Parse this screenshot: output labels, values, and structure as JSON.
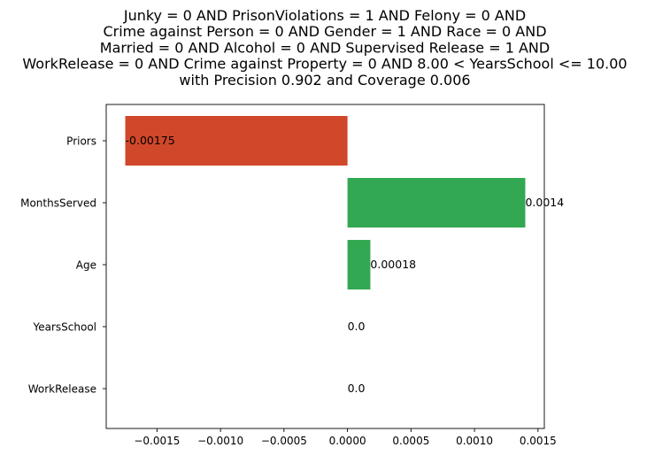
{
  "chart_data": {
    "type": "bar",
    "orientation": "horizontal",
    "title_lines": [
      "Junky = 0 AND PrisonViolations = 1 AND Felony = 0 AND",
      "Crime against Person = 0 AND Gender = 1 AND Race = 0 AND",
      "Married = 0 AND Alcohol = 0 AND Supervised Release = 1 AND",
      "WorkRelease = 0 AND Crime against Property = 0 AND 8.00 < YearsSchool <= 10.00",
      "with Precision 0.902 and Coverage 0.006"
    ],
    "categories": [
      "Priors",
      "MonthsServed",
      "Age",
      "YearsSchool",
      "WorkRelease"
    ],
    "values": [
      -0.00175,
      0.0014,
      0.00018,
      0.0,
      0.0
    ],
    "value_labels": [
      "-0.00175",
      "0.0014",
      "0.00018",
      "0.0",
      "0.0"
    ],
    "xlim": [
      -0.0019,
      0.00155
    ],
    "xticks": [
      -0.0015,
      -0.001,
      -0.0005,
      0.0,
      0.0005,
      0.001,
      0.0015
    ],
    "xtick_labels": [
      "−0.0015",
      "−0.0010",
      "−0.0005",
      "0.0000",
      "0.0005",
      "0.0010",
      "0.0015"
    ],
    "colors": {
      "negative": "#d0472a",
      "positive": "#32a852"
    },
    "grid": false,
    "xlabel": "",
    "ylabel": ""
  }
}
